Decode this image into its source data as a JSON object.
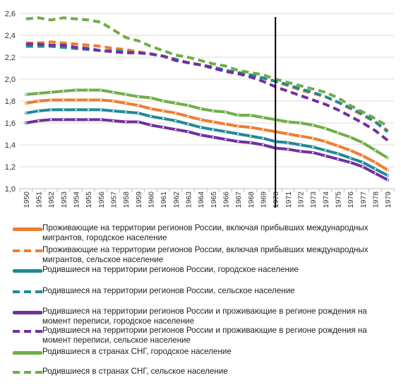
{
  "chart_data": {
    "type": "line",
    "x": [
      "1950",
      "1951",
      "1952",
      "1953",
      "1954",
      "1955",
      "1956",
      "1957",
      "1958",
      "1959",
      "1960",
      "1961",
      "1962",
      "1963",
      "1964",
      "1965",
      "1966",
      "1967",
      "1968",
      "1969",
      "1970",
      "1971",
      "1972",
      "1973",
      "1974",
      "1975",
      "1976",
      "1977",
      "1978",
      "1979"
    ],
    "ylim": [
      1.0,
      2.6
    ],
    "yticks": [
      "1,0",
      "1,2",
      "1,4",
      "1,6",
      "1,8",
      "2,0",
      "2,2",
      "2,4",
      "2,6"
    ],
    "grid": "horizontal",
    "vline_at": "1970",
    "legend_position": "bottom",
    "series": [
      {
        "name": "Проживающие на территории регионов России, включая прибывших международных мигрантов, городское население",
        "color": "#ED7D31",
        "style": "solid",
        "values": [
          1.78,
          1.8,
          1.81,
          1.81,
          1.81,
          1.81,
          1.81,
          1.8,
          1.78,
          1.76,
          1.73,
          1.71,
          1.69,
          1.66,
          1.63,
          1.61,
          1.59,
          1.57,
          1.56,
          1.54,
          1.52,
          1.5,
          1.48,
          1.46,
          1.43,
          1.39,
          1.35,
          1.3,
          1.24,
          1.17
        ]
      },
      {
        "name": "Проживающие на территории регионов России, включая прибывших международных мигрантов, сельское население",
        "color": "#ED7D31",
        "style": "dashed",
        "values": [
          2.33,
          2.33,
          2.34,
          2.33,
          2.32,
          2.31,
          2.3,
          2.28,
          2.27,
          2.25,
          2.23,
          2.21,
          2.18,
          2.15,
          2.13,
          2.11,
          2.08,
          2.06,
          2.04,
          2.01,
          1.98,
          1.94,
          1.9,
          1.87,
          1.84,
          1.79,
          1.73,
          1.67,
          1.61,
          1.53
        ]
      },
      {
        "name": "Родившиеся на территории регионов России, городское население",
        "color": "#1F8A96",
        "style": "solid",
        "values": [
          1.69,
          1.71,
          1.72,
          1.72,
          1.72,
          1.72,
          1.72,
          1.71,
          1.7,
          1.69,
          1.66,
          1.64,
          1.62,
          1.59,
          1.56,
          1.54,
          1.52,
          1.5,
          1.48,
          1.46,
          1.43,
          1.42,
          1.4,
          1.38,
          1.35,
          1.32,
          1.28,
          1.24,
          1.18,
          1.12
        ]
      },
      {
        "name": "Родившиеся на территории регионов России, сельское население",
        "color": "#1F8A96",
        "style": "dashed",
        "values": [
          2.3,
          2.3,
          2.3,
          2.29,
          2.28,
          2.27,
          2.26,
          2.26,
          2.25,
          2.24,
          2.23,
          2.21,
          2.18,
          2.15,
          2.13,
          2.11,
          2.08,
          2.06,
          2.04,
          2.01,
          1.98,
          1.95,
          1.91,
          1.88,
          1.84,
          1.79,
          1.74,
          1.68,
          1.61,
          1.52
        ]
      },
      {
        "name": "Родившиеся на территории регионов России и проживающие в регионе рождения на момент переписи, городское население",
        "color": "#7030A0",
        "style": "solid",
        "values": [
          1.6,
          1.62,
          1.63,
          1.63,
          1.63,
          1.63,
          1.63,
          1.62,
          1.61,
          1.61,
          1.58,
          1.56,
          1.54,
          1.52,
          1.49,
          1.47,
          1.45,
          1.43,
          1.42,
          1.4,
          1.37,
          1.36,
          1.34,
          1.33,
          1.3,
          1.27,
          1.24,
          1.2,
          1.14,
          1.08
        ]
      },
      {
        "name": "Родившиеся на территории регионов России и проживающие в регионе рождения на момент переписи, сельское население",
        "color": "#7030A0",
        "style": "dashed",
        "values": [
          2.32,
          2.32,
          2.31,
          2.31,
          2.29,
          2.28,
          2.26,
          2.25,
          2.24,
          2.24,
          2.23,
          2.21,
          2.17,
          2.15,
          2.13,
          2.1,
          2.07,
          2.05,
          2.02,
          1.98,
          1.93,
          1.89,
          1.85,
          1.81,
          1.77,
          1.72,
          1.66,
          1.6,
          1.53,
          1.44
        ]
      },
      {
        "name": "Родившиеся в странах СНГ, городское население",
        "color": "#70AD47",
        "style": "solid",
        "values": [
          1.86,
          1.87,
          1.88,
          1.89,
          1.9,
          1.9,
          1.9,
          1.88,
          1.86,
          1.84,
          1.83,
          1.8,
          1.78,
          1.76,
          1.73,
          1.71,
          1.7,
          1.67,
          1.67,
          1.65,
          1.63,
          1.61,
          1.6,
          1.58,
          1.55,
          1.51,
          1.47,
          1.42,
          1.35,
          1.28
        ]
      },
      {
        "name": "Родившиеся в странах СНГ, сельское население",
        "color": "#70AD47",
        "style": "dashed",
        "values": [
          2.55,
          2.56,
          2.54,
          2.56,
          2.55,
          2.54,
          2.52,
          2.45,
          2.38,
          2.35,
          2.3,
          2.26,
          2.22,
          2.2,
          2.17,
          2.14,
          2.12,
          2.08,
          2.06,
          2.04,
          2.0,
          1.97,
          1.94,
          1.91,
          1.88,
          1.83,
          1.76,
          1.7,
          1.64,
          1.57
        ]
      }
    ]
  },
  "legend": [
    {
      "label": "Проживающие на территории регионов России, включая прибывших международных мигрантов, городское население",
      "color": "#ED7D31",
      "style": "solid"
    },
    {
      "label": "Проживающие на территории регионов России, включая прибывших международных мигрантов, сельское население",
      "color": "#ED7D31",
      "style": "dashed"
    },
    {
      "label": "Родившиеся на территории регионов России, городское население",
      "color": "#1F8A96",
      "style": "solid"
    },
    {
      "label": "Родившиеся на территории регионов России, сельское население",
      "color": "#1F8A96",
      "style": "dashed"
    },
    {
      "label": "Родившиеся на территории регионов России и проживающие в регионе рождения на момент переписи, городское население",
      "color": "#7030A0",
      "style": "solid"
    },
    {
      "label": "Родившиеся на территории регионов России и проживающие в регионе рождения на момент переписи, сельское население",
      "color": "#7030A0",
      "style": "dashed"
    },
    {
      "label": "Родившиеся в странах СНГ, городское население",
      "color": "#70AD47",
      "style": "solid"
    },
    {
      "label": "Родившиеся в странах СНГ, сельское население",
      "color": "#70AD47",
      "style": "dashed"
    }
  ]
}
